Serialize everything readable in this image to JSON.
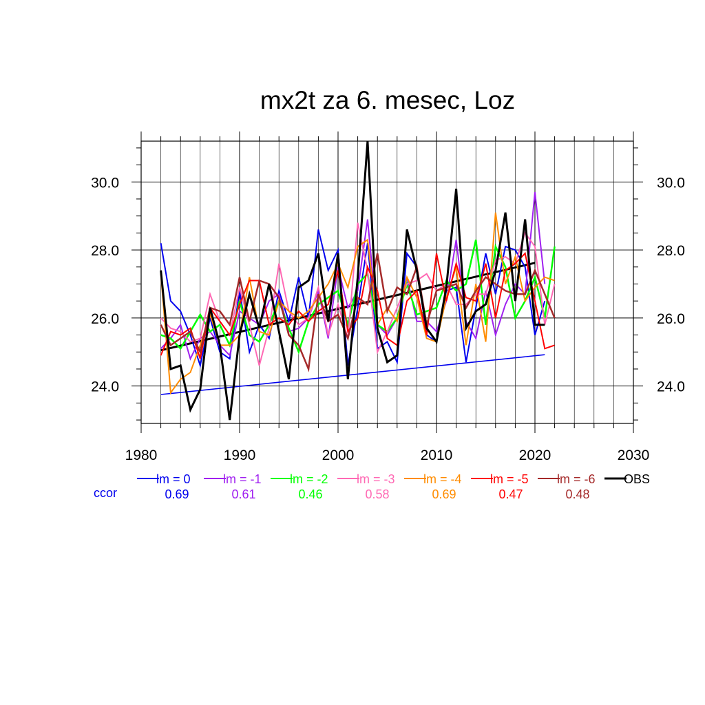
{
  "chart_data": {
    "type": "line",
    "title": "mx2t za 6. mesec, Loz",
    "xlabel": "",
    "ylabel": "",
    "xlim": [
      1980,
      2030
    ],
    "ylim": [
      22.9,
      31.2
    ],
    "x_ticks": [
      "1980",
      "1990",
      "2000",
      "2010",
      "2020",
      "2030"
    ],
    "y_ticks": [
      "24.0",
      "26.0",
      "28.0",
      "30.0"
    ],
    "y_tick_values": [
      24,
      26,
      28,
      30
    ],
    "grid": true,
    "ccor_label": "ccor",
    "series": [
      {
        "name": "lm = 0",
        "color": "#0000ee",
        "width": 2,
        "ccor": "0.69",
        "x": [
          1982,
          1983,
          1984,
          1985,
          1986,
          1987,
          1988,
          1989,
          1990,
          1991,
          1992,
          1993,
          1994,
          1995,
          1996,
          1997,
          1998,
          1999,
          2000,
          2001,
          2002,
          2003,
          2004,
          2005,
          2006,
          2007,
          2008,
          2009,
          2010,
          2011,
          2012,
          2013,
          2014,
          2015,
          2016,
          2017,
          2018,
          2019,
          2020,
          2021
        ],
        "y": [
          28.2,
          26.5,
          26.2,
          25.5,
          24.6,
          26.0,
          25.0,
          24.8,
          26.8,
          25.0,
          25.8,
          25.4,
          26.8,
          25.9,
          27.2,
          26.0,
          28.6,
          27.4,
          28.0,
          24.6,
          26.3,
          28.2,
          25.1,
          25.3,
          24.7,
          27.9,
          27.5,
          25.5,
          25.3,
          26.8,
          26.9,
          24.7,
          26.3,
          27.9,
          26.7,
          28.1,
          28.0,
          27.5,
          25.5,
          26.5
        ],
        "trend": [
          [
            1982,
            23.75
          ],
          [
            2021,
            24.92
          ]
        ]
      },
      {
        "name": "lm = -1",
        "color": "#a020f0",
        "width": 2,
        "ccor": "0.61",
        "x": [
          1982,
          1983,
          1984,
          1985,
          1986,
          1987,
          1988,
          1989,
          1990,
          1991,
          1992,
          1993,
          1994,
          1995,
          1996,
          1997,
          1998,
          1999,
          2000,
          2001,
          2002,
          2003,
          2004,
          2005,
          2006,
          2007,
          2008,
          2009,
          2010,
          2011,
          2012,
          2013,
          2014,
          2015,
          2016,
          2017,
          2018,
          2019,
          2020,
          2021
        ],
        "y": [
          25.1,
          25.4,
          25.8,
          24.8,
          25.4,
          25.6,
          25.2,
          24.9,
          26.2,
          26.0,
          25.8,
          26.5,
          26.7,
          25.6,
          25.7,
          26.0,
          26.8,
          25.4,
          27.5,
          26.3,
          26.8,
          28.9,
          25.8,
          25.5,
          26.0,
          27.2,
          25.9,
          25.9,
          25.6,
          26.5,
          28.3,
          25.9,
          25.4,
          26.8,
          25.5,
          26.4,
          27.0,
          26.7,
          29.7,
          27.0
        ]
      },
      {
        "name": "lm = -2",
        "color": "#00ff00",
        "width": 2.5,
        "ccor": "0.46",
        "x": [
          1982,
          1983,
          1984,
          1985,
          1986,
          1987,
          1988,
          1989,
          1990,
          1991,
          1992,
          1993,
          1994,
          1995,
          1996,
          1997,
          1998,
          1999,
          2000,
          2001,
          2002,
          2003,
          2004,
          2005,
          2006,
          2007,
          2008,
          2009,
          2010,
          2011,
          2012,
          2013,
          2014,
          2015,
          2016,
          2017,
          2018,
          2019,
          2020,
          2021,
          2022
        ],
        "y": [
          25.5,
          25.4,
          25.1,
          25.6,
          26.1,
          25.6,
          25.8,
          25.2,
          26.5,
          25.5,
          25.3,
          25.8,
          26.5,
          25.7,
          25.0,
          25.9,
          26.4,
          26.6,
          26.8,
          25.8,
          27.0,
          27.3,
          25.8,
          25.6,
          26.0,
          27.0,
          26.1,
          26.2,
          26.3,
          27.1,
          26.8,
          27.0,
          28.3,
          25.8,
          28.1,
          27.5,
          26.0,
          26.5,
          27.2,
          26.0,
          28.1
        ]
      },
      {
        "name": "lm = -3",
        "color": "#ff69b4",
        "width": 2,
        "ccor": "0.58",
        "x": [
          1982,
          1983,
          1984,
          1985,
          1986,
          1987,
          1988,
          1989,
          1990,
          1991,
          1992,
          1993,
          1994,
          1995,
          1996,
          1997,
          1998,
          1999,
          2000,
          2001,
          2002,
          2003,
          2004,
          2005,
          2006,
          2007,
          2008,
          2009,
          2010,
          2011,
          2012,
          2013,
          2014,
          2015,
          2016,
          2017,
          2018,
          2019,
          2020,
          2021,
          2022
        ],
        "y": [
          26.0,
          25.7,
          25.6,
          25.3,
          25.4,
          26.7,
          25.9,
          25.5,
          26.9,
          25.8,
          24.6,
          25.7,
          27.6,
          26.2,
          25.8,
          26.0,
          26.9,
          25.5,
          26.4,
          25.4,
          28.8,
          27.4,
          25.0,
          25.6,
          26.3,
          27.0,
          27.1,
          27.3,
          26.8,
          27.0,
          26.4,
          26.4,
          26.7,
          26.7,
          27.7,
          27.8,
          27.6,
          28.5,
          28.1,
          25.8,
          27.0
        ]
      },
      {
        "name": "lm = -4",
        "color": "#ff8c00",
        "width": 2,
        "ccor": "0.69",
        "x": [
          1982,
          1983,
          1984,
          1985,
          1986,
          1987,
          1988,
          1989,
          1990,
          1991,
          1992,
          1993,
          1994,
          1995,
          1996,
          1997,
          1998,
          1999,
          2000,
          2001,
          2002,
          2003,
          2004,
          2005,
          2006,
          2007,
          2008,
          2009,
          2010,
          2011,
          2012,
          2013,
          2014,
          2015,
          2016,
          2017,
          2018,
          2019,
          2020,
          2021,
          2022
        ],
        "y": [
          27.3,
          23.8,
          24.2,
          24.4,
          25.2,
          26.1,
          25.2,
          25.2,
          25.5,
          27.2,
          25.6,
          25.5,
          26.5,
          26.2,
          26.0,
          26.2,
          26.6,
          27.0,
          27.6,
          26.9,
          28.1,
          28.3,
          25.8,
          26.3,
          25.9,
          27.2,
          26.6,
          25.4,
          25.3,
          26.6,
          27.5,
          25.2,
          27.0,
          25.3,
          29.1,
          27.0,
          27.8,
          26.5,
          26.9,
          27.2,
          27.1
        ]
      },
      {
        "name": "lm = -5",
        "color": "#ff0000",
        "width": 2,
        "ccor": "0.47",
        "x": [
          1982,
          1983,
          1984,
          1985,
          1986,
          1987,
          1988,
          1989,
          1990,
          1991,
          1992,
          1993,
          1994,
          1995,
          1996,
          1997,
          1998,
          1999,
          2000,
          2001,
          2002,
          2003,
          2004,
          2005,
          2006,
          2007,
          2008,
          2009,
          2010,
          2011,
          2012,
          2013,
          2014,
          2015,
          2016,
          2017,
          2018,
          2019,
          2020,
          2021,
          2022
        ],
        "y": [
          24.9,
          25.6,
          25.5,
          25.7,
          24.8,
          26.3,
          25.9,
          25.5,
          26.4,
          27.1,
          27.1,
          25.8,
          26.0,
          25.8,
          26.2,
          25.9,
          26.2,
          26.4,
          27.4,
          25.6,
          26.0,
          27.5,
          26.8,
          25.4,
          25.2,
          26.5,
          26.8,
          25.5,
          27.9,
          26.5,
          27.6,
          26.6,
          26.5,
          27.6,
          26.0,
          27.4,
          27.6,
          27.9,
          26.5,
          25.1,
          25.2
        ]
      },
      {
        "name": "lm = -6",
        "color": "#a52a2a",
        "width": 2.5,
        "ccor": "0.48",
        "x": [
          1982,
          1983,
          1984,
          1985,
          1986,
          1987,
          1988,
          1989,
          1990,
          1991,
          1992,
          1993,
          1994,
          1995,
          1996,
          1997,
          1998,
          1999,
          2000,
          2001,
          2002,
          2003,
          2004,
          2005,
          2006,
          2007,
          2008,
          2009,
          2010,
          2011,
          2012,
          2013,
          2014,
          2015,
          2016,
          2017,
          2018,
          2019,
          2020,
          2021,
          2022
        ],
        "y": [
          25.8,
          25.2,
          25.4,
          25.6,
          25.0,
          26.3,
          26.2,
          25.8,
          27.2,
          25.9,
          27.1,
          27.0,
          26.6,
          25.5,
          25.2,
          24.5,
          26.7,
          25.9,
          26.1,
          25.4,
          26.6,
          26.4,
          27.9,
          26.2,
          26.9,
          26.7,
          27.5,
          25.8,
          26.8,
          26.9,
          27.0,
          26.3,
          26.8,
          27.2,
          27.0,
          26.8,
          26.7,
          26.7,
          27.4,
          26.7,
          26.0
        ]
      },
      {
        "name": "OBS",
        "color": "#000000",
        "width": 3,
        "ccor": "",
        "x": [
          1982,
          1983,
          1984,
          1985,
          1986,
          1987,
          1988,
          1989,
          1990,
          1991,
          1992,
          1993,
          1994,
          1995,
          1996,
          1997,
          1998,
          1999,
          2000,
          2001,
          2002,
          2003,
          2004,
          2005,
          2006,
          2007,
          2008,
          2009,
          2010,
          2011,
          2012,
          2013,
          2014,
          2015,
          2016,
          2017,
          2018,
          2019,
          2020,
          2021
        ],
        "y": [
          27.4,
          24.5,
          24.6,
          23.3,
          23.9,
          26.3,
          25.2,
          23.0,
          25.5,
          26.7,
          25.7,
          27.0,
          25.6,
          24.2,
          26.9,
          27.1,
          27.9,
          25.9,
          27.9,
          24.2,
          27.2,
          31.2,
          25.7,
          24.7,
          24.9,
          28.6,
          27.4,
          25.7,
          25.3,
          26.9,
          29.8,
          25.7,
          26.2,
          26.4,
          27.4,
          29.1,
          26.5,
          28.9,
          25.8,
          25.8
        ],
        "trend": [
          [
            1982,
            25.05
          ],
          [
            2020,
            27.62
          ]
        ]
      }
    ]
  }
}
